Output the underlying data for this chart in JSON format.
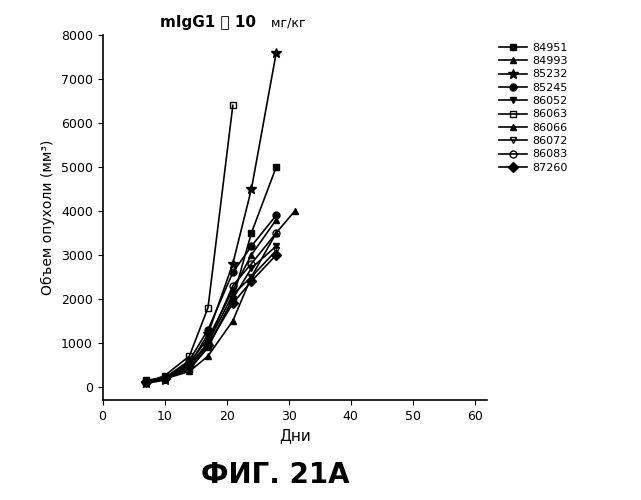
{
  "title_bold": "mIgG1 ⓐ 10",
  "title_normal": " мг/кг",
  "xlabel": "Дни",
  "ylabel": "Объем опухоли (мм³)",
  "caption": "ФИГ. 21А",
  "xlim": [
    0,
    62
  ],
  "ylim": [
    -300,
    8000
  ],
  "yticks": [
    0,
    1000,
    2000,
    3000,
    4000,
    5000,
    6000,
    7000,
    8000
  ],
  "xticks": [
    0,
    10,
    20,
    30,
    40,
    50,
    60
  ],
  "series": [
    {
      "label": "84951",
      "marker": "s",
      "fillstyle": "full",
      "x": [
        7,
        10,
        14,
        17,
        21,
        24,
        28
      ],
      "y": [
        150,
        200,
        400,
        900,
        2000,
        3500,
        5000
      ]
    },
    {
      "label": "84993",
      "marker": "^",
      "fillstyle": "full",
      "x": [
        7,
        10,
        14,
        17,
        21,
        24,
        28,
        31
      ],
      "y": [
        100,
        180,
        350,
        700,
        1500,
        2500,
        3500,
        4000
      ]
    },
    {
      "label": "85232",
      "marker": "*",
      "fillstyle": "full",
      "x": [
        7,
        10,
        14,
        17,
        21,
        24,
        28
      ],
      "y": [
        80,
        150,
        500,
        1200,
        2800,
        4500,
        7600
      ]
    },
    {
      "label": "85245",
      "marker": "o",
      "fillstyle": "full",
      "x": [
        7,
        10,
        14,
        17,
        21,
        24,
        28
      ],
      "y": [
        120,
        200,
        600,
        1300,
        2600,
        3200,
        3900
      ]
    },
    {
      "label": "86052",
      "marker": "v",
      "fillstyle": "full",
      "x": [
        7,
        10,
        14,
        17,
        21,
        24,
        28
      ],
      "y": [
        90,
        180,
        400,
        900,
        2000,
        2700,
        3200
      ]
    },
    {
      "label": "86063",
      "marker": "s",
      "fillstyle": "none",
      "x": [
        7,
        10,
        14,
        17,
        21
      ],
      "y": [
        100,
        250,
        700,
        1800,
        6400
      ]
    },
    {
      "label": "86066",
      "marker": "^",
      "fillstyle": "full",
      "x": [
        7,
        10,
        14,
        17,
        21,
        24,
        28
      ],
      "y": [
        110,
        200,
        550,
        1100,
        2200,
        3000,
        3800
      ]
    },
    {
      "label": "86072",
      "marker": "v",
      "fillstyle": "none",
      "x": [
        7,
        10,
        14,
        17,
        21,
        24,
        28
      ],
      "y": [
        130,
        220,
        500,
        1000,
        2100,
        2500,
        3100
      ]
    },
    {
      "label": "86083",
      "marker": "o",
      "fillstyle": "none",
      "x": [
        7,
        10,
        14,
        17,
        21,
        24,
        28
      ],
      "y": [
        100,
        190,
        450,
        1000,
        2300,
        2800,
        3500
      ]
    },
    {
      "label": "87260",
      "marker": "D",
      "fillstyle": "full",
      "x": [
        7,
        10,
        14,
        17,
        21,
        24,
        28
      ],
      "y": [
        110,
        210,
        480,
        950,
        1900,
        2400,
        3000
      ]
    }
  ]
}
